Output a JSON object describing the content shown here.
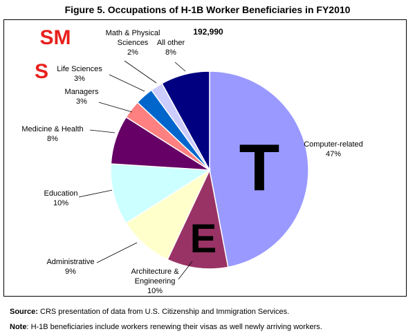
{
  "title": "Figure 5. Occupations of H-1B Worker Beneficiaries in FY2010",
  "chart_data": {
    "type": "pie",
    "total_label": "192,990",
    "slices": [
      {
        "label": "Computer-related",
        "value": 47,
        "pct_label": "47%",
        "color": "#9999ff"
      },
      {
        "label": "Architecture & Engineering",
        "value": 10,
        "pct_label": "10%",
        "color": "#993366"
      },
      {
        "label": "Administrative",
        "value": 9,
        "pct_label": "9%",
        "color": "#ffffcc"
      },
      {
        "label": "Education",
        "value": 10,
        "pct_label": "10%",
        "color": "#ccffff"
      },
      {
        "label": "Medicine & Health",
        "value": 8,
        "pct_label": "8%",
        "color": "#660066"
      },
      {
        "label": "Managers",
        "value": 3,
        "pct_label": "3%",
        "color": "#ff8080"
      },
      {
        "label": "Life Sciences",
        "value": 3,
        "pct_label": "3%",
        "color": "#0066cc"
      },
      {
        "label": "Math & Physical Sciences",
        "value": 2,
        "pct_label": "2%",
        "color": "#ccccff"
      },
      {
        "label": "All other",
        "value": 8,
        "pct_label": "8%",
        "color": "#000080"
      }
    ],
    "annotations": [
      {
        "text": "SM",
        "color": "#e8201c"
      },
      {
        "text": "S",
        "color": "#e8201c"
      },
      {
        "text": "T",
        "color": "#000000"
      },
      {
        "text": "E",
        "color": "#000000"
      }
    ]
  },
  "source_label": "Source:",
  "source_text": " CRS presentation of data from U.S. Citizenship and Immigration Services.",
  "note_label": "Note",
  "note_text": ": H-1B beneficiaries include workers renewing their visas as well newly arriving workers."
}
